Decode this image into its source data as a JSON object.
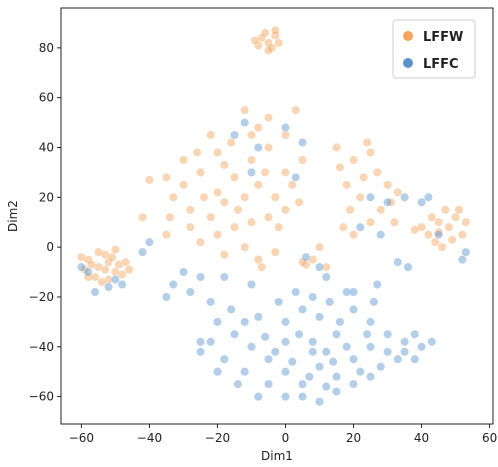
{
  "chart_data": {
    "type": "scatter",
    "title": "",
    "xlabel": "Dim1",
    "ylabel": "Dim2",
    "xlim": [
      -66,
      61
    ],
    "ylim": [
      -71,
      96
    ],
    "xticks": [
      -60,
      -40,
      -20,
      0,
      20,
      40,
      60
    ],
    "yticks": [
      -60,
      -40,
      -20,
      0,
      20,
      40,
      60,
      80
    ],
    "xtick_labels": [
      "−60",
      "−40",
      "−20",
      "0",
      "20",
      "40",
      "60"
    ],
    "ytick_labels": [
      "−60",
      "−40",
      "−20",
      "0",
      "20",
      "40",
      "60",
      "80"
    ],
    "grid": false,
    "legend": {
      "position": "top-right"
    },
    "series": [
      {
        "name": "LFFW",
        "color": "#f39a4d",
        "points": [
          [
            -7,
            84
          ],
          [
            -5,
            82
          ],
          [
            -3,
            85
          ],
          [
            -8,
            81
          ],
          [
            -4,
            80
          ],
          [
            -6,
            86
          ],
          [
            -2,
            82
          ],
          [
            -9,
            83
          ],
          [
            -5,
            79
          ],
          [
            -3,
            87
          ],
          [
            -58,
            -5
          ],
          [
            -55,
            -8
          ],
          [
            -52,
            -6
          ],
          [
            -50,
            -10
          ],
          [
            -56,
            -12
          ],
          [
            -53,
            -3
          ],
          [
            -49,
            -7
          ],
          [
            -59,
            -9
          ],
          [
            -54,
            -14
          ],
          [
            -51,
            -4
          ],
          [
            -57,
            -7
          ],
          [
            -48,
            -11
          ],
          [
            -60,
            -4
          ],
          [
            -52,
            -13
          ],
          [
            -55,
            -2
          ],
          [
            -47,
            -6
          ],
          [
            -50,
            -1
          ],
          [
            -58,
            -12
          ],
          [
            -53,
            -9
          ],
          [
            -46,
            -9
          ],
          [
            -30,
            25
          ],
          [
            -25,
            30
          ],
          [
            -20,
            22
          ],
          [
            -15,
            28
          ],
          [
            -10,
            35
          ],
          [
            -5,
            40
          ],
          [
            0,
            30
          ],
          [
            -28,
            15
          ],
          [
            -22,
            12
          ],
          [
            -18,
            18
          ],
          [
            -12,
            20
          ],
          [
            -8,
            25
          ],
          [
            -3,
            20
          ],
          [
            2,
            25
          ],
          [
            5,
            35
          ],
          [
            -33,
            20
          ],
          [
            -35,
            28
          ],
          [
            -26,
            38
          ],
          [
            -16,
            42
          ],
          [
            -8,
            48
          ],
          [
            -12,
            55
          ],
          [
            -5,
            52
          ],
          [
            3,
            55
          ],
          [
            -20,
            5
          ],
          [
            -15,
            8
          ],
          [
            -10,
            10
          ],
          [
            -5,
            12
          ],
          [
            0,
            15
          ],
          [
            -25,
            2
          ],
          [
            -18,
            -3
          ],
          [
            -12,
            0
          ],
          [
            -8,
            -5
          ],
          [
            -3,
            -2
          ],
          [
            8,
            -5
          ],
          [
            10,
            0
          ],
          [
            -30,
            35
          ],
          [
            -22,
            45
          ],
          [
            -18,
            33
          ],
          [
            -6,
            30
          ],
          [
            4,
            18
          ],
          [
            -14,
            15
          ],
          [
            -24,
            20
          ],
          [
            -28,
            8
          ],
          [
            -10,
            45
          ],
          [
            0,
            45
          ],
          [
            -2,
            8
          ],
          [
            -34,
            12
          ],
          [
            -20,
            38
          ],
          [
            6,
            -7
          ],
          [
            -7,
            -8
          ],
          [
            15,
            40
          ],
          [
            20,
            35
          ],
          [
            25,
            38
          ],
          [
            18,
            25
          ],
          [
            22,
            20
          ],
          [
            28,
            15
          ],
          [
            30,
            25
          ],
          [
            25,
            10
          ],
          [
            20,
            5
          ],
          [
            32,
            10
          ],
          [
            27,
            30
          ],
          [
            23,
            28
          ],
          [
            19,
            15
          ],
          [
            31,
            18
          ],
          [
            16,
            32
          ],
          [
            33,
            22
          ],
          [
            24,
            42
          ],
          [
            17,
            8
          ],
          [
            42,
            5
          ],
          [
            45,
            10
          ],
          [
            48,
            8
          ],
          [
            50,
            12
          ],
          [
            44,
            2
          ],
          [
            47,
            15
          ],
          [
            52,
            5
          ],
          [
            46,
            0
          ],
          [
            40,
            8
          ],
          [
            53,
            10
          ],
          [
            43,
            12
          ],
          [
            49,
            3
          ],
          [
            45,
            6
          ],
          [
            38,
            7
          ],
          [
            51,
            15
          ],
          [
            5,
            -6
          ],
          [
            12,
            -8
          ],
          [
            -40,
            27
          ],
          [
            -42,
            12
          ],
          [
            -35,
            5
          ]
        ]
      },
      {
        "name": "LFFC",
        "color": "#4a8ac9",
        "points": [
          [
            -10,
            -40
          ],
          [
            -5,
            -45
          ],
          [
            0,
            -50
          ],
          [
            5,
            -55
          ],
          [
            10,
            -48
          ],
          [
            15,
            -52
          ],
          [
            20,
            -45
          ],
          [
            25,
            -40
          ],
          [
            30,
            -42
          ],
          [
            35,
            -38
          ],
          [
            40,
            -40
          ],
          [
            -15,
            -35
          ],
          [
            -20,
            -30
          ],
          [
            0,
            -30
          ],
          [
            5,
            -25
          ],
          [
            10,
            -28
          ],
          [
            15,
            -35
          ],
          [
            20,
            -25
          ],
          [
            25,
            -30
          ],
          [
            -5,
            -55
          ],
          [
            0,
            -60
          ],
          [
            5,
            -60
          ],
          [
            10,
            -62
          ],
          [
            15,
            -58
          ],
          [
            20,
            -55
          ],
          [
            25,
            -52
          ],
          [
            -12,
            -50
          ],
          [
            -18,
            -45
          ],
          [
            -22,
            -38
          ],
          [
            -25,
            -42
          ],
          [
            0,
            -38
          ],
          [
            8,
            -38
          ],
          [
            12,
            -42
          ],
          [
            18,
            -40
          ],
          [
            -8,
            -28
          ],
          [
            -2,
            -22
          ],
          [
            3,
            -18
          ],
          [
            8,
            -20
          ],
          [
            13,
            -22
          ],
          [
            18,
            -18
          ],
          [
            -3,
            -42
          ],
          [
            2,
            -46
          ],
          [
            7,
            -52
          ],
          [
            14,
            -46
          ],
          [
            22,
            -50
          ],
          [
            28,
            -48
          ],
          [
            33,
            -45
          ],
          [
            38,
            -35
          ],
          [
            43,
            -38
          ],
          [
            -14,
            -55
          ],
          [
            -8,
            -60
          ],
          [
            12,
            -56
          ],
          [
            30,
            -35
          ],
          [
            26,
            -22
          ],
          [
            -16,
            -25
          ],
          [
            -28,
            -18
          ],
          [
            -35,
            -20
          ],
          [
            -30,
            -10
          ],
          [
            -33,
            -15
          ],
          [
            -25,
            -12
          ],
          [
            -15,
            45
          ],
          [
            -12,
            50
          ],
          [
            -8,
            40
          ],
          [
            -10,
            30
          ],
          [
            0,
            48
          ],
          [
            5,
            42
          ],
          [
            3,
            28
          ],
          [
            -18,
            -12
          ],
          [
            -10,
            -15
          ],
          [
            10,
            -8
          ],
          [
            12,
            -12
          ],
          [
            20,
            -18
          ],
          [
            27,
            -15
          ],
          [
            28,
            5
          ],
          [
            25,
            20
          ],
          [
            30,
            18
          ],
          [
            35,
            20
          ],
          [
            40,
            18
          ],
          [
            42,
            20
          ],
          [
            45,
            5
          ],
          [
            52,
            -5
          ],
          [
            53,
            -2
          ],
          [
            -48,
            -15
          ],
          [
            -52,
            -16
          ],
          [
            -56,
            -18
          ],
          [
            -50,
            -13
          ],
          [
            -58,
            -10
          ],
          [
            -60,
            -8
          ],
          [
            -40,
            2
          ],
          [
            -42,
            -2
          ],
          [
            36,
            -8
          ],
          [
            33,
            -6
          ],
          [
            -22,
            -22
          ],
          [
            22,
            8
          ],
          [
            6,
            -4
          ],
          [
            -25,
            -38
          ],
          [
            -20,
            -50
          ],
          [
            35,
            -42
          ],
          [
            38,
            -45
          ],
          [
            -6,
            -36
          ],
          [
            16,
            -30
          ],
          [
            4,
            -35
          ],
          [
            -12,
            -30
          ],
          [
            8,
            -42
          ],
          [
            24,
            -35
          ]
        ]
      }
    ]
  }
}
